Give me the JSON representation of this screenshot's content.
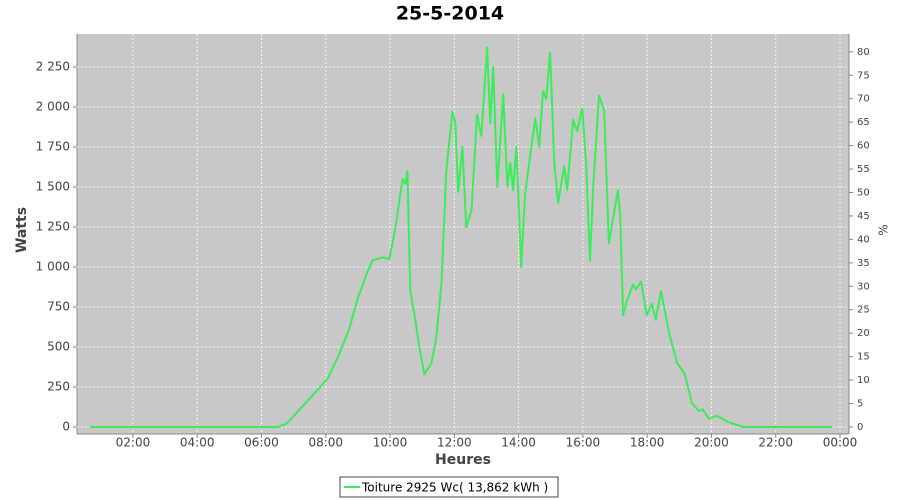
{
  "chart_data": {
    "type": "line",
    "title": "25-5-2014",
    "x_label": "Heures",
    "y_label": "Watts",
    "y2_label": "%",
    "x": [
      0.66,
      6.5,
      6.78,
      8.05,
      8.43,
      8.74,
      8.99,
      9.24,
      9.45,
      9.76,
      9.98,
      10.17,
      10.39,
      10.48,
      10.54,
      10.63,
      10.76,
      10.91,
      11.07,
      11.29,
      11.44,
      11.6,
      11.75,
      11.94,
      12.03,
      12.12,
      12.25,
      12.37,
      12.53,
      12.71,
      12.84,
      13.02,
      13.12,
      13.21,
      13.34,
      13.52,
      13.65,
      13.74,
      13.83,
      13.93,
      14.08,
      14.2,
      14.33,
      14.52,
      14.64,
      14.76,
      14.86,
      14.98,
      15.11,
      15.23,
      15.42,
      15.51,
      15.7,
      15.82,
      15.98,
      16.1,
      16.22,
      16.32,
      16.5,
      16.66,
      16.81,
      17.09,
      17.16,
      17.25,
      17.37,
      17.56,
      17.65,
      17.81,
      17.99,
      18.15,
      18.27,
      18.43,
      18.68,
      18.93,
      19.17,
      19.39,
      19.61,
      19.73,
      19.92,
      20.17,
      20.54,
      21.0,
      23.74
    ],
    "series": [
      {
        "name": "Toiture 2925 Wc( 13,862 kWh )",
        "color": "#3cec5a",
        "values": [
          0,
          0,
          20,
          300,
          460,
          620,
          800,
          940,
          1040,
          1060,
          1050,
          1250,
          1550,
          1520,
          1600,
          850,
          700,
          500,
          330,
          400,
          560,
          900,
          1600,
          1970,
          1900,
          1470,
          1750,
          1250,
          1350,
          1950,
          1820,
          2370,
          1900,
          2250,
          1500,
          2080,
          1500,
          1650,
          1480,
          1750,
          1000,
          1450,
          1650,
          1930,
          1750,
          2100,
          2050,
          2340,
          1650,
          1400,
          1630,
          1480,
          1920,
          1850,
          1990,
          1650,
          1040,
          1500,
          2070,
          1980,
          1150,
          1480,
          1320,
          700,
          790,
          890,
          860,
          910,
          700,
          770,
          670,
          850,
          590,
          400,
          330,
          150,
          100,
          110,
          50,
          70,
          30,
          0,
          0
        ]
      }
    ],
    "xlim": [
      0.26,
      24.28
    ],
    "xticks": [
      {
        "value": 2,
        "label": "02:00"
      },
      {
        "value": 4,
        "label": "04:00"
      },
      {
        "value": 6,
        "label": "06:00"
      },
      {
        "value": 8,
        "label": "08:00"
      },
      {
        "value": 10,
        "label": "10:00"
      },
      {
        "value": 12,
        "label": "12:00"
      },
      {
        "value": 14,
        "label": "14:00"
      },
      {
        "value": 16,
        "label": "16:00"
      },
      {
        "value": 18,
        "label": "18:00"
      },
      {
        "value": 20,
        "label": "20:00"
      },
      {
        "value": 22,
        "label": "22:00"
      },
      {
        "value": 24,
        "label": "00:00"
      }
    ],
    "ylim": [
      -44,
      2456
    ],
    "yticks": [
      0,
      250,
      500,
      750,
      {
        "value": 1000,
        "label": "1 000"
      },
      {
        "value": 1250,
        "label": "1 250"
      },
      {
        "value": 1500,
        "label": "1 500"
      },
      {
        "value": 1750,
        "label": "1 750"
      },
      {
        "value": 2000,
        "label": "2 000"
      },
      {
        "value": 2250,
        "label": "2 250"
      }
    ],
    "y2lim": [
      -1.5,
      83.8
    ],
    "y2ticks": [
      0,
      5,
      10,
      15,
      20,
      25,
      30,
      35,
      40,
      45,
      50,
      55,
      60,
      65,
      70,
      75,
      80
    ],
    "grid": true,
    "legend": "bottom"
  }
}
